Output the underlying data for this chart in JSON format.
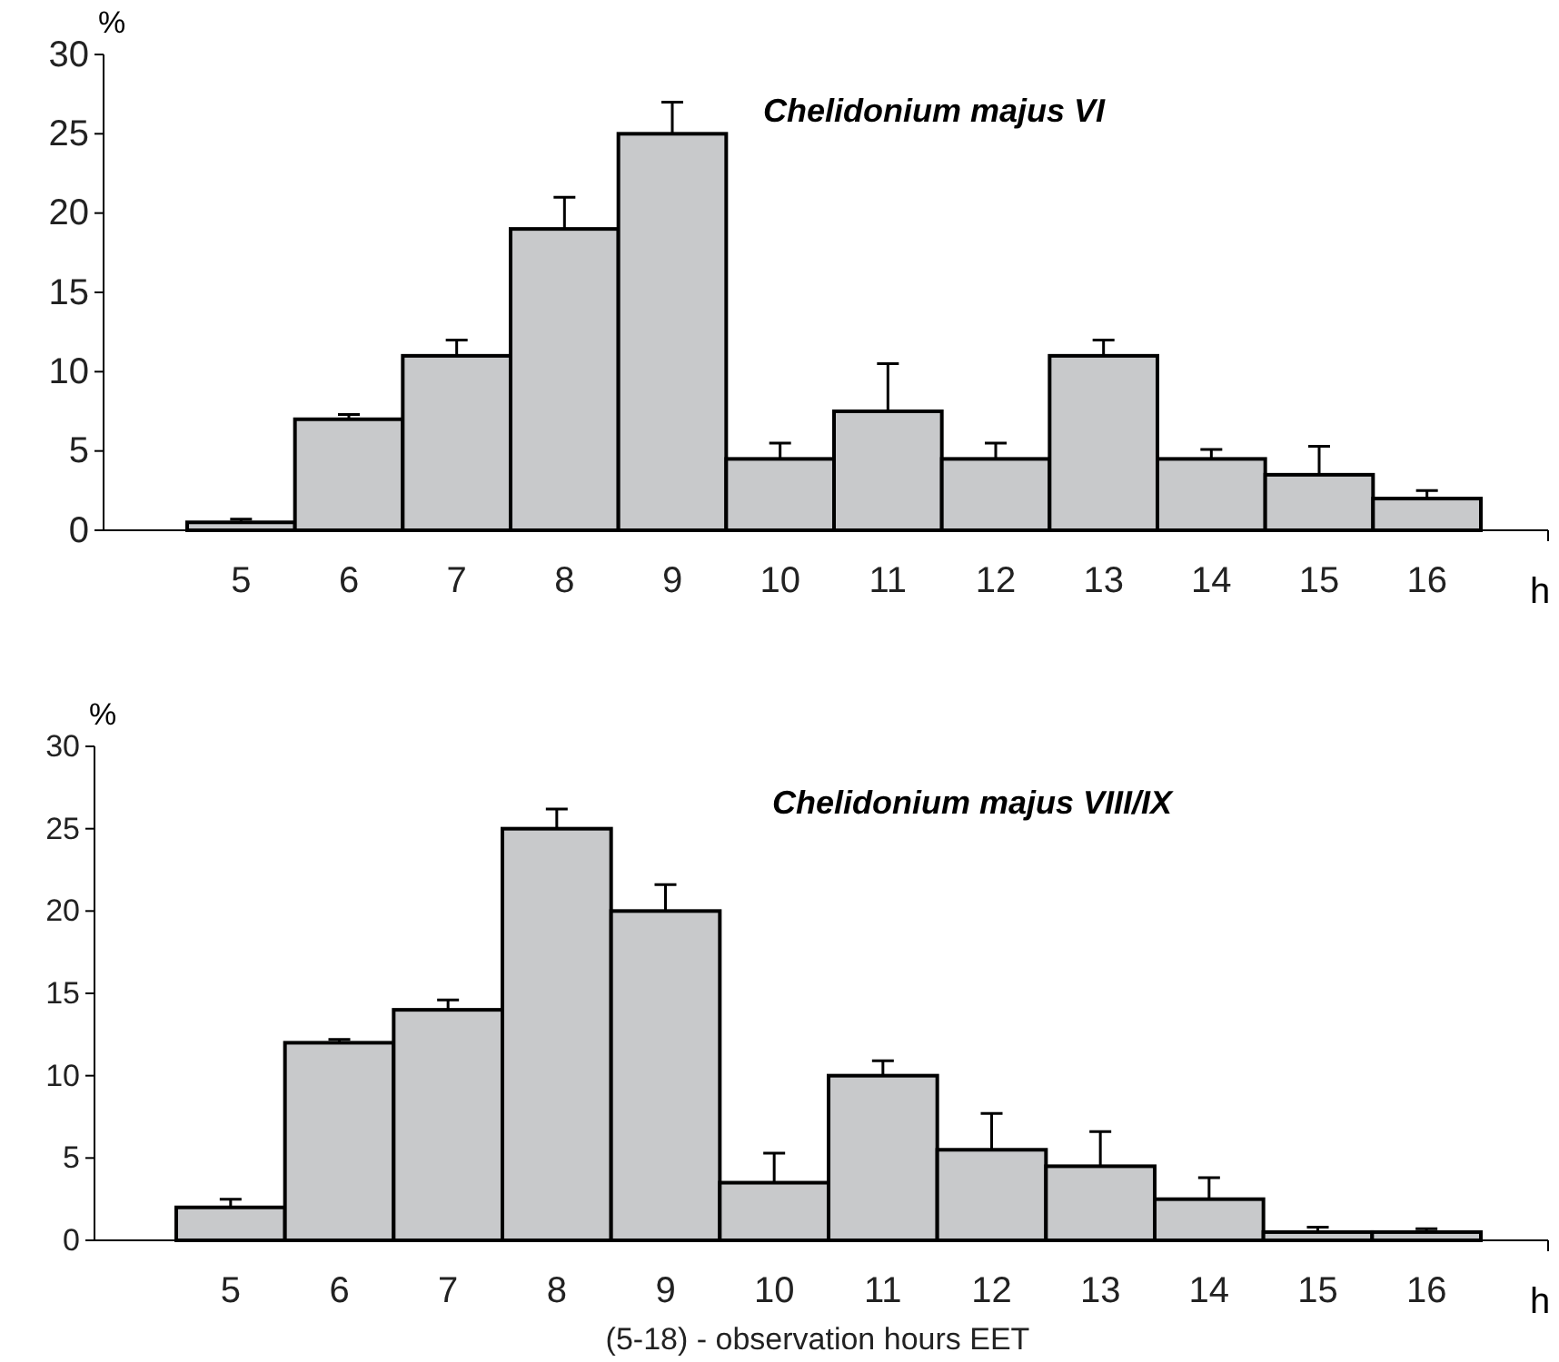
{
  "chart_data": [
    {
      "type": "bar",
      "title": "Chelidonium majus VI",
      "ylabel": "%",
      "xlabel": "h",
      "categories": [
        "5",
        "6",
        "7",
        "8",
        "9",
        "10",
        "11",
        "12",
        "13",
        "14",
        "15",
        "16"
      ],
      "values": [
        0.5,
        7,
        11,
        19,
        25,
        4.5,
        7.5,
        4.5,
        11,
        4.5,
        3.5,
        2
      ],
      "errors": [
        [
          0.5,
          0.7
        ],
        [
          7,
          7.3
        ],
        [
          11,
          12
        ],
        [
          19,
          21
        ],
        [
          25,
          27
        ],
        [
          4.5,
          5.5
        ],
        [
          7.5,
          10.5
        ],
        [
          4.5,
          5.5
        ],
        [
          11,
          12
        ],
        [
          4.5,
          5.1
        ],
        [
          3.5,
          5.3
        ],
        [
          2,
          2.5
        ]
      ],
      "color": "#c8c9cb",
      "ylim": [
        0,
        30
      ],
      "yticks": [
        0,
        5,
        10,
        15,
        20,
        25,
        30
      ],
      "grid": false
    },
    {
      "type": "bar",
      "title": "Chelidonium majus VIII/IX",
      "ylabel": "%",
      "xlabel": "h",
      "categories": [
        "5",
        "6",
        "7",
        "8",
        "9",
        "10",
        "11",
        "12",
        "13",
        "14",
        "15",
        "16"
      ],
      "values": [
        2,
        12,
        14,
        25,
        20,
        3.5,
        10,
        5.5,
        4.5,
        2.5,
        0.5,
        0.5
      ],
      "errors": [
        [
          2,
          2.5
        ],
        [
          12,
          12.2
        ],
        [
          14,
          14.6
        ],
        [
          25,
          26.2
        ],
        [
          20,
          21.6
        ],
        [
          3.5,
          5.3
        ],
        [
          10,
          10.9
        ],
        [
          5.5,
          7.7
        ],
        [
          4.5,
          6.6
        ],
        [
          2.5,
          3.8
        ],
        [
          0.5,
          0.8
        ],
        [
          0.5,
          0.7
        ]
      ],
      "color": "#c8c9cb",
      "ylim": [
        0,
        30
      ],
      "yticks": [
        0,
        5,
        10,
        15,
        20,
        25,
        30
      ],
      "grid": false,
      "annotations": [
        "(5-18) - observation hours EET"
      ]
    }
  ]
}
